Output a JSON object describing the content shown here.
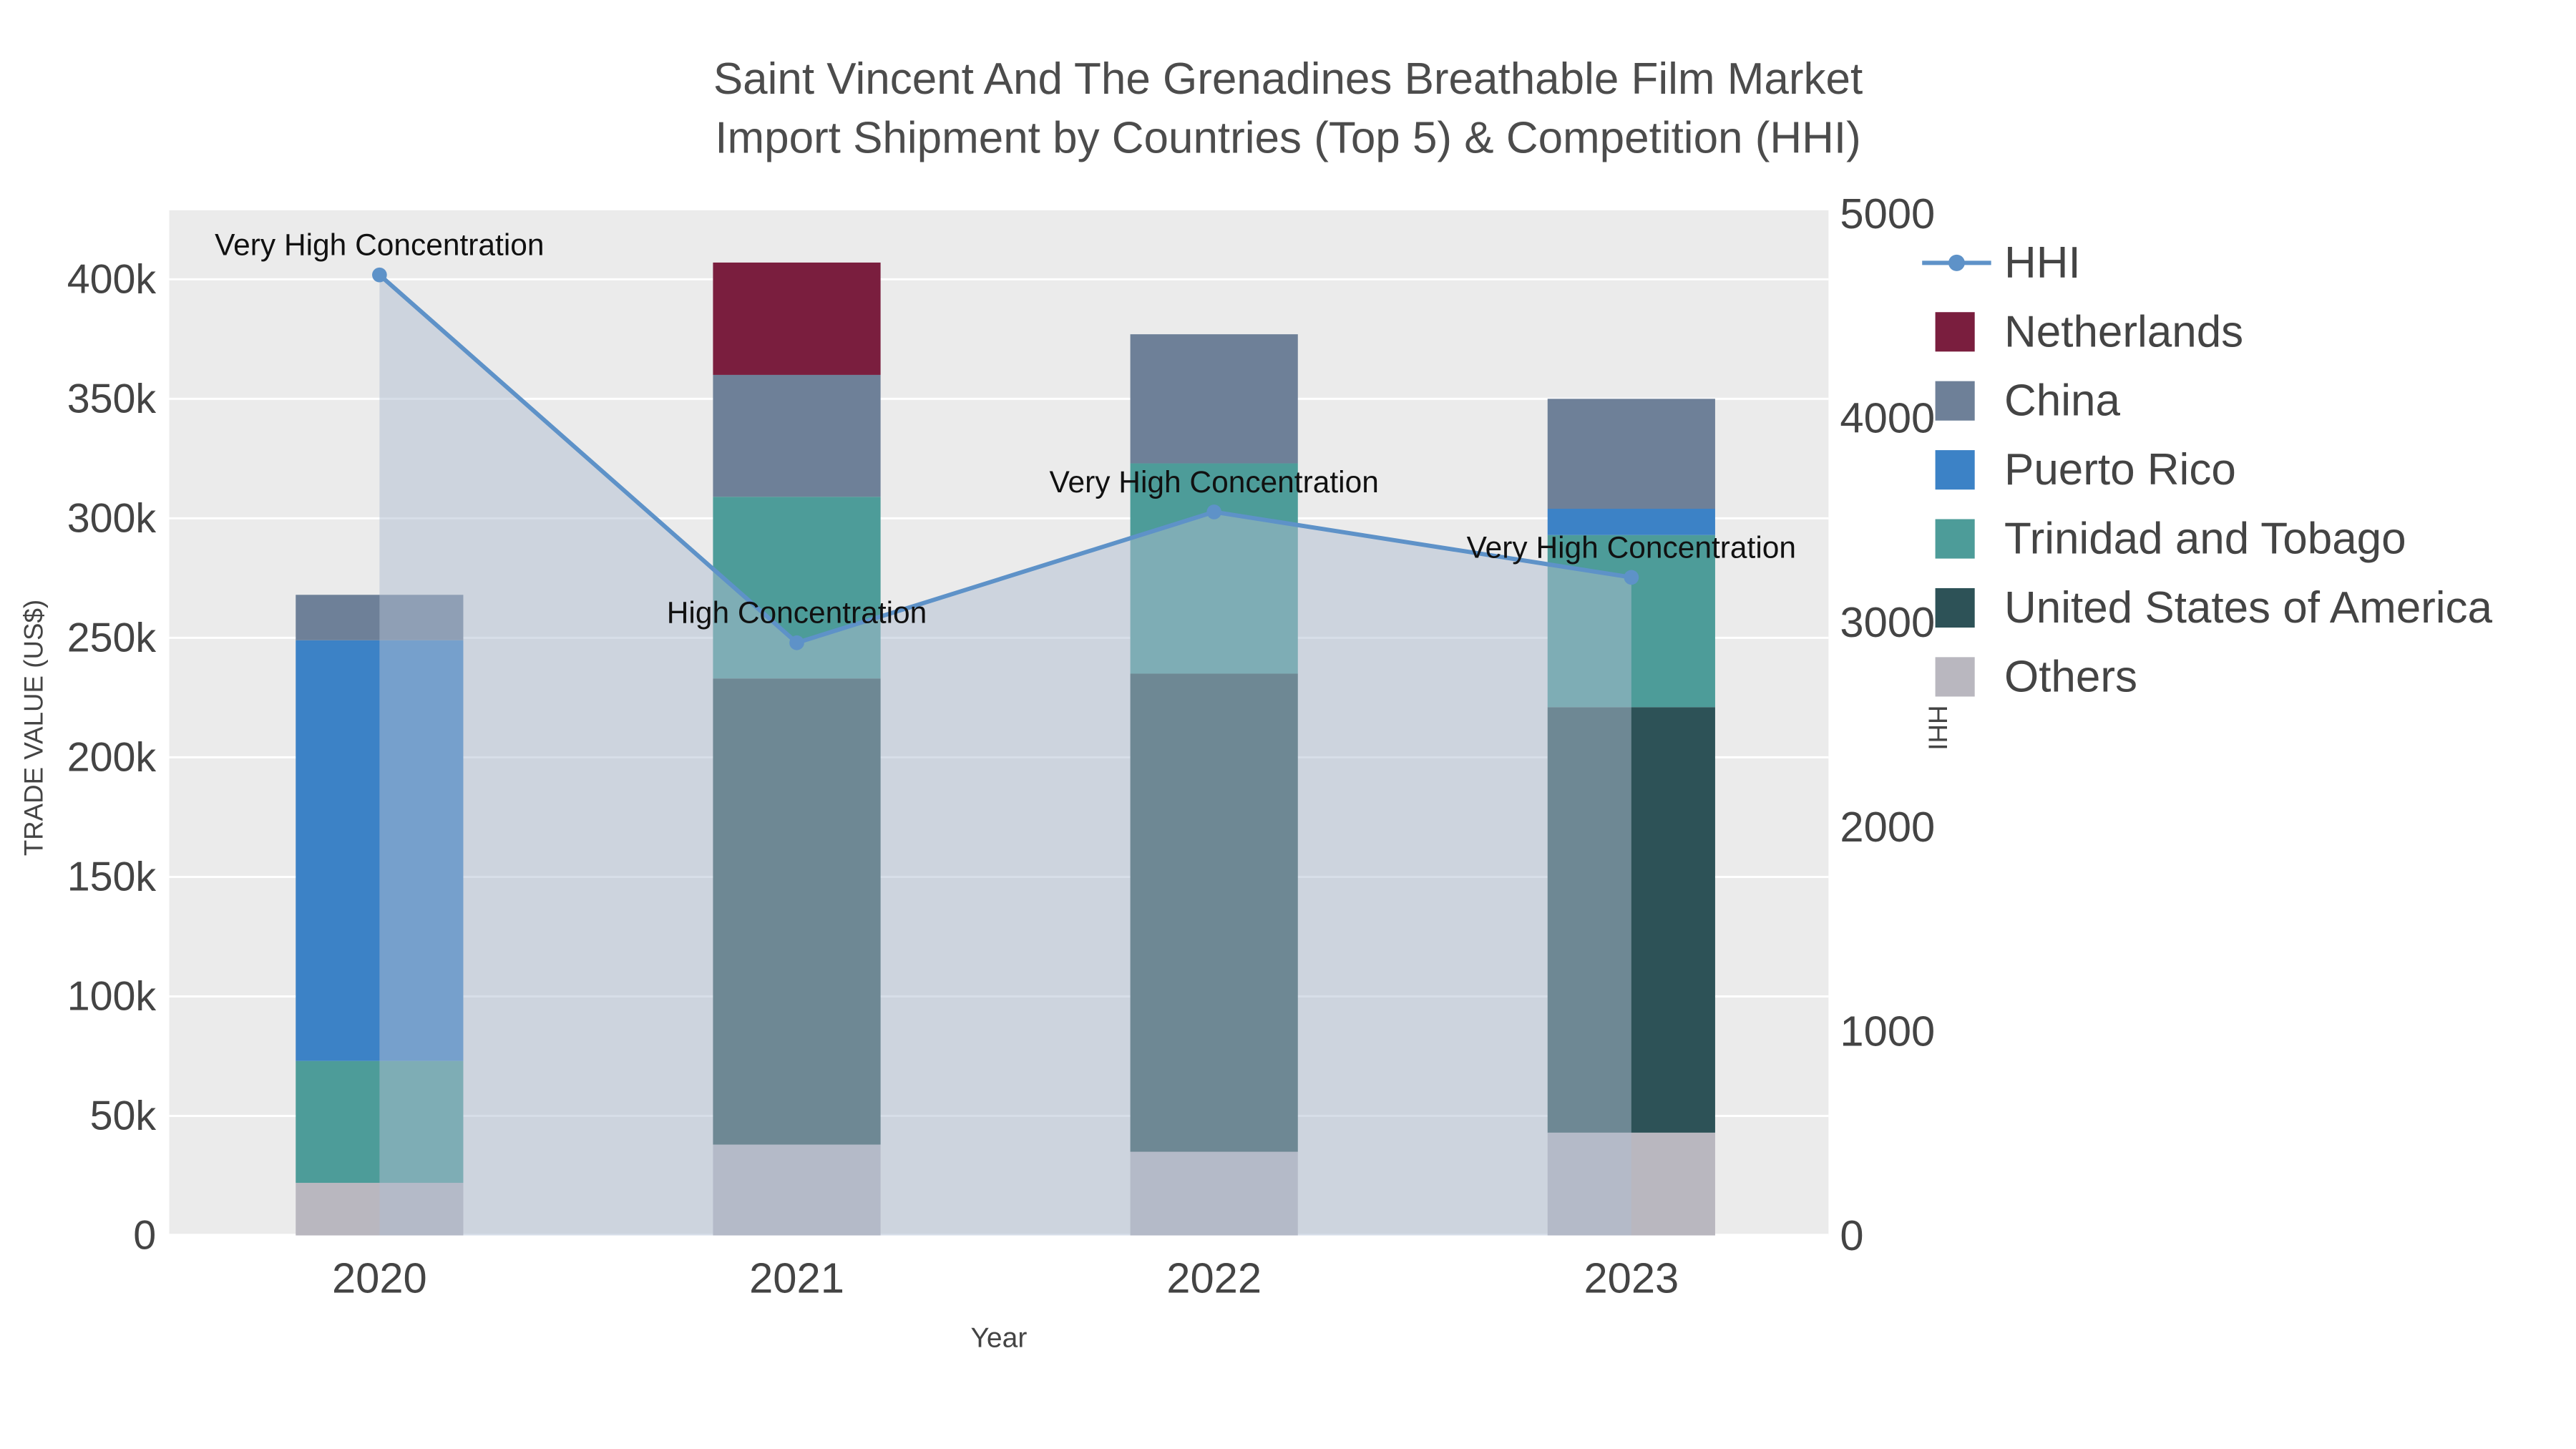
{
  "chart_data": {
    "type": "bar",
    "title_line1": "Saint Vincent And The Grenadines Breathable Film Market",
    "title_line2": "Import Shipment by Countries (Top 5) & Competition (HHI)",
    "xlabel": "Year",
    "ylabel_left": "TRADE VALUE (US$)",
    "ylabel_right": "HHI",
    "categories": [
      "2020",
      "2021",
      "2022",
      "2023"
    ],
    "bar_series": [
      {
        "name": "Others",
        "color": "#b9b7bf",
        "values": [
          22000,
          38000,
          35000,
          43000
        ]
      },
      {
        "name": "United States of America",
        "color": "#2d5257",
        "values": [
          0,
          195000,
          200000,
          178000
        ]
      },
      {
        "name": "Trinidad and Tobago",
        "color": "#4d9c99",
        "values": [
          51000,
          76000,
          88000,
          72000
        ]
      },
      {
        "name": "Puerto Rico",
        "color": "#3c82c6",
        "values": [
          176000,
          0,
          0,
          11000
        ]
      },
      {
        "name": "China",
        "color": "#6e8098",
        "values": [
          19000,
          51000,
          54000,
          46000
        ]
      },
      {
        "name": "Netherlands",
        "color": "#7a1e3e",
        "values": [
          0,
          47000,
          0,
          0
        ]
      }
    ],
    "hhi_series": {
      "name": "HHI",
      "values": [
        4700,
        2900,
        3540,
        3220
      ],
      "line_color": "#5e92c8",
      "fill_color": "rgba(175,190,210,0.5)"
    },
    "annotations": [
      "Very High Concentration",
      "High Concentration",
      "Very High Concentration",
      "Very High Concentration"
    ],
    "legend": [
      "HHI",
      "Netherlands",
      "China",
      "Puerto Rico",
      "Trinidad and Tobago",
      "United States of America",
      "Others"
    ],
    "y_left": {
      "ticks": [
        0,
        50000,
        100000,
        150000,
        200000,
        250000,
        300000,
        350000,
        400000
      ],
      "tick_labels": [
        "0",
        "50k",
        "100k",
        "150k",
        "200k",
        "250k",
        "300k",
        "350k",
        "400k"
      ],
      "range": [
        0,
        429000
      ]
    },
    "y_right": {
      "ticks": [
        0,
        1000,
        2000,
        3000,
        4000,
        5000
      ],
      "tick_labels": [
        "0",
        "1000",
        "2000",
        "3000",
        "4000",
        "5000"
      ],
      "range": [
        0,
        5016
      ]
    },
    "plot_bg": "#ebebeb",
    "grid_color": "#ffffff",
    "text_color": "#444444",
    "annotation_color": "#111111",
    "legend_position": "right"
  }
}
